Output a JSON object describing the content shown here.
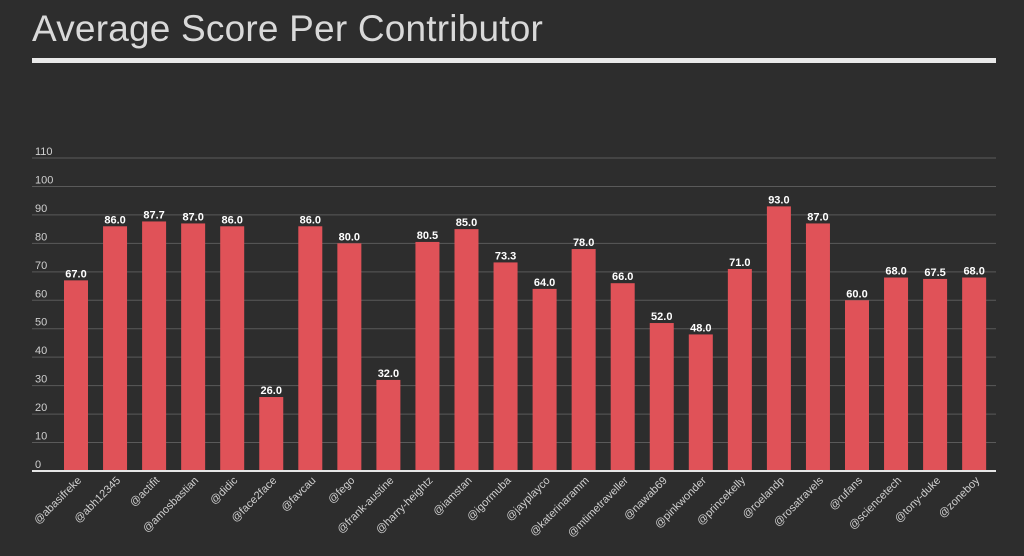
{
  "chart_data": {
    "type": "bar",
    "title": "Average Score Per Contributor",
    "xlabel": "",
    "ylabel": "",
    "ylim": [
      0,
      110
    ],
    "yticks": [
      0,
      10,
      20,
      30,
      40,
      50,
      60,
      70,
      80,
      90,
      100,
      110
    ],
    "grid": true,
    "legend": "none",
    "bar_color": "#e05258",
    "categories": [
      "@abasifreke",
      "@abh12345",
      "@actifit",
      "@amosbastian",
      "@didic",
      "@face2face",
      "@favcau",
      "@fego",
      "@frank-austine",
      "@harry-heightz",
      "@iamstan",
      "@igormuba",
      "@jayplayco",
      "@katerinaramm",
      "@mtimetraveller",
      "@nawab69",
      "@pinkwonder",
      "@princekelly",
      "@roelandp",
      "@rosatravels",
      "@rufans",
      "@sciencetech",
      "@tony-duke",
      "@zoneboy"
    ],
    "values": [
      67.0,
      86.0,
      87.7,
      87.0,
      86.0,
      26.0,
      86.0,
      80.0,
      32.0,
      80.5,
      85.0,
      73.3,
      64.0,
      78.0,
      66.0,
      52.0,
      48.0,
      71.0,
      93.0,
      87.0,
      60.0,
      68.0,
      67.5,
      68.0
    ],
    "data_labels": [
      "67.0",
      "86.0",
      "87.7",
      "87.0",
      "86.0",
      "26.0",
      "86.0",
      "80.0",
      "32.0",
      "80.5",
      "85.0",
      "73.3",
      "64.0",
      "78.0",
      "66.0",
      "52.0",
      "48.0",
      "71.0",
      "93.0",
      "87.0",
      "60.0",
      "68.0",
      "67.5",
      "68.0"
    ]
  }
}
